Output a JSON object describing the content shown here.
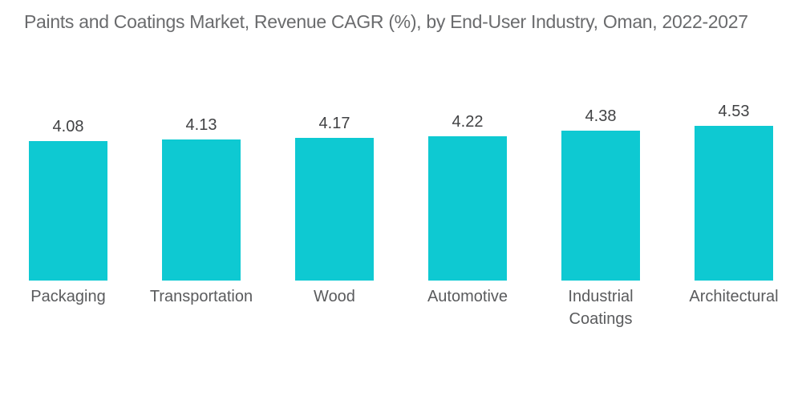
{
  "title": "Paints and Coatings Market, Revenue CAGR (%), by End-User Industry, Oman, 2022-2027",
  "chart_data": {
    "type": "bar",
    "title": "Paints and Coatings Market, Revenue CAGR (%), by End-User Industry, Oman, 2022-2027",
    "categories": [
      "Packaging",
      "Transportation",
      "Wood",
      "Automotive",
      "Industrial Coatings",
      "Architectural"
    ],
    "category_display": [
      "Packaging",
      "Transportation",
      "Wood",
      "Automotive",
      "Industrial\nCoatings",
      "Architectural"
    ],
    "values": [
      4.08,
      4.13,
      4.17,
      4.22,
      4.38,
      4.53
    ],
    "value_labels": [
      "4.08",
      "4.13",
      "4.17",
      "4.22",
      "4.38",
      "4.53"
    ],
    "xlabel": "",
    "ylabel": "",
    "ylim": [
      0,
      4.53
    ],
    "grid": false,
    "legend": false,
    "data_labels_position": "above-bars"
  },
  "colors": {
    "bar": "#0ec9d2",
    "title_text": "#6a6b6d",
    "value_text": "#414244",
    "category_text": "#5a5b5d",
    "background": "#ffffff"
  }
}
